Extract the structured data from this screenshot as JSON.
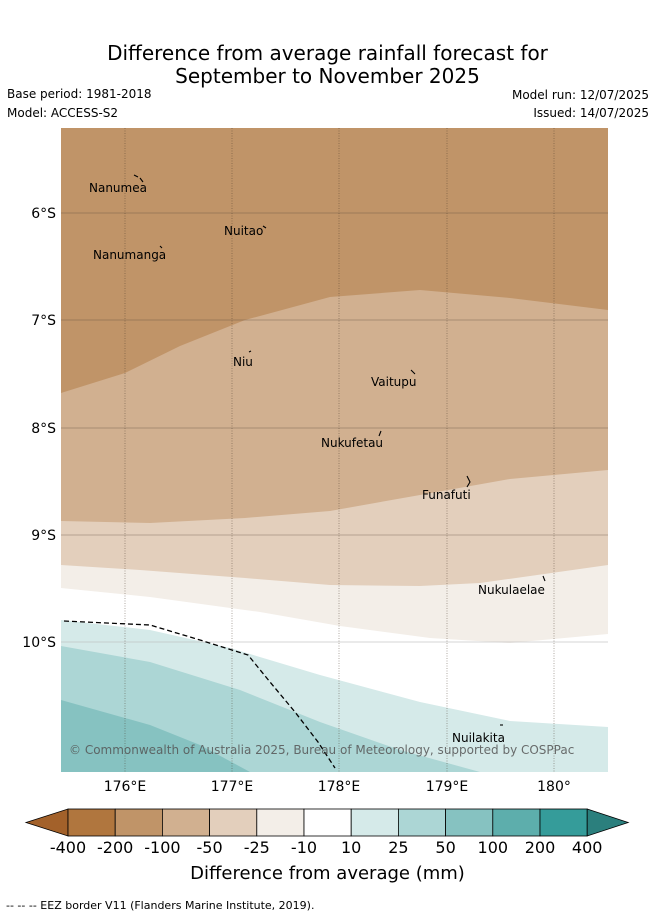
{
  "title_line1": "Difference from average rainfall forecast for",
  "title_line2": "September to November 2025",
  "base_period": "Base period: 1981-2018",
  "model": "Model: ACCESS-S2",
  "model_run": "Model run: 12/07/2025",
  "issued": "Issued: 14/07/2025",
  "lat_labels": [
    "6°S",
    "7°S",
    "8°S",
    "9°S",
    "10°S"
  ],
  "lon_labels": [
    "176°E",
    "177°E",
    "178°E",
    "179°E",
    "180°"
  ],
  "places": [
    "Nanumea",
    "Nuitao",
    "Nanumanga",
    "Niu",
    "Vaitupu",
    "Nukufetau",
    "Funafuti",
    "Nukulaelae",
    "Nuilakita"
  ],
  "copyright": "© Commonwealth of Australia 2025, Bureau of Meteorology, supported by COSPPac",
  "colorbar": {
    "ticks": [
      "-400",
      "-200",
      "-100",
      "-50",
      "-25",
      "-10",
      "10",
      "25",
      "50",
      "100",
      "200",
      "400"
    ],
    "colors": [
      "#a3612a",
      "#b0763e",
      "#c09468",
      "#d1b090",
      "#e3cfbc",
      "#f3eee8",
      "#ffffff",
      "#d5eae9",
      "#acd6d5",
      "#86c2c1",
      "#5daeac",
      "#359c9a",
      "#2b7f7d"
    ],
    "label": "Difference from average (mm)"
  },
  "footer": "--  --  -- EEZ border V11 (Flanders Marine Institute, 2019)."
}
